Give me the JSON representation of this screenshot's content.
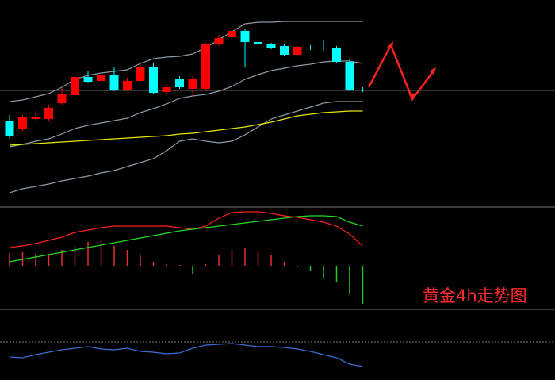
{
  "annotation": "黄金4h走势图",
  "chart_data": [
    {
      "type": "candlestick",
      "ylim": [
        0,
        260
      ],
      "up_color": "#ff0000",
      "down_color": "#00ffff",
      "open": [
        108,
        98,
        110,
        110,
        130,
        140,
        163,
        158,
        166,
        147,
        158,
        176,
        144,
        160,
        148,
        148,
        204,
        213,
        221,
        207,
        204,
        202,
        191,
        200,
        200,
        200,
        182,
        147
      ],
      "high": [
        115,
        115,
        120,
        128,
        150,
        178,
        170,
        170,
        175,
        162,
        182,
        180,
        154,
        164,
        164,
        206,
        216,
        246,
        224,
        232,
        206,
        204,
        203,
        203,
        210,
        202,
        186,
        150
      ],
      "low": [
        85,
        95,
        108,
        108,
        128,
        138,
        155,
        156,
        145,
        145,
        156,
        141,
        142,
        148,
        138,
        146,
        202,
        211,
        175,
        202,
        198,
        189,
        189,
        197,
        196,
        180,
        145,
        144
      ],
      "close": [
        88,
        112,
        113,
        124,
        142,
        163,
        157,
        166,
        147,
        158,
        176,
        143,
        150,
        150,
        160,
        204,
        212,
        221,
        207,
        204,
        200,
        191,
        201,
        199,
        199,
        182,
        147,
        146
      ],
      "series": [
        {
          "name": "upper",
          "color": "#8a9aa8",
          "values": [
            132,
            134,
            138,
            142,
            150,
            160,
            165,
            168,
            170,
            172,
            180,
            186,
            188,
            189,
            192,
            200,
            210,
            220,
            230,
            232,
            232,
            233,
            233,
            233,
            233,
            233,
            233,
            233
          ]
        },
        {
          "name": "middle",
          "color": "#8a9aa8",
          "values": [
            75,
            78,
            82,
            85,
            91,
            98,
            102,
            105,
            108,
            111,
            118,
            123,
            129,
            136,
            139,
            141,
            145,
            151,
            160,
            166,
            171,
            174,
            177,
            179,
            182,
            183,
            183,
            180
          ]
        },
        {
          "name": "lower",
          "color": "#8a9aa8",
          "values": [
            17,
            22,
            25,
            28,
            32,
            35,
            38,
            42,
            45,
            50,
            55,
            60,
            70,
            82,
            85,
            82,
            80,
            82,
            90,
            100,
            110,
            115,
            120,
            125,
            130,
            132,
            132,
            132
          ]
        },
        {
          "name": "ma",
          "color": "#e6e600",
          "values": [
            77,
            78,
            79,
            80,
            81,
            82,
            83,
            84,
            85,
            86,
            87,
            88,
            89,
            91,
            92,
            94,
            96,
            98,
            100,
            103,
            106,
            110,
            114,
            116,
            118,
            119,
            120,
            120
          ]
        }
      ],
      "price_line": 146
    },
    {
      "type": "macd",
      "ylim": [
        -55,
        73
      ],
      "pos_color": "#e03030",
      "neg_color": "#22cc22",
      "histogram": [
        16,
        17,
        15,
        15,
        20,
        25,
        30,
        33,
        25,
        20,
        13,
        5,
        2,
        1,
        -10,
        2,
        13,
        20,
        22,
        19,
        13,
        5,
        -1,
        -7,
        -15,
        -20,
        -35,
        -48
      ],
      "series": [
        {
          "name": "macd",
          "color": "#ff2020",
          "values": [
            23,
            25,
            28,
            32,
            36,
            42,
            45,
            48,
            50,
            50,
            50,
            50,
            50,
            48,
            46,
            50,
            60,
            67,
            68,
            68,
            66,
            63,
            61,
            58,
            55,
            50,
            40,
            25
          ]
        },
        {
          "name": "signal",
          "color": "#22dd22",
          "values": [
            5,
            8,
            11,
            14,
            17,
            20,
            23,
            26,
            29,
            32,
            35,
            38,
            41,
            44,
            46,
            48,
            50,
            52,
            54,
            56,
            58,
            60,
            62,
            63,
            63,
            62,
            55,
            50
          ]
        }
      ]
    },
    {
      "type": "line",
      "ylim": [
        0,
        87
      ],
      "level": 48,
      "series": [
        {
          "name": "indicator",
          "color": "#3a6fd0",
          "values": [
            29,
            28,
            32,
            35,
            38,
            40,
            42,
            39,
            38,
            40,
            36,
            35,
            33,
            34,
            40,
            44,
            45,
            46,
            44,
            42,
            42,
            41,
            39,
            36,
            32,
            28,
            20,
            17
          ]
        }
      ]
    }
  ]
}
